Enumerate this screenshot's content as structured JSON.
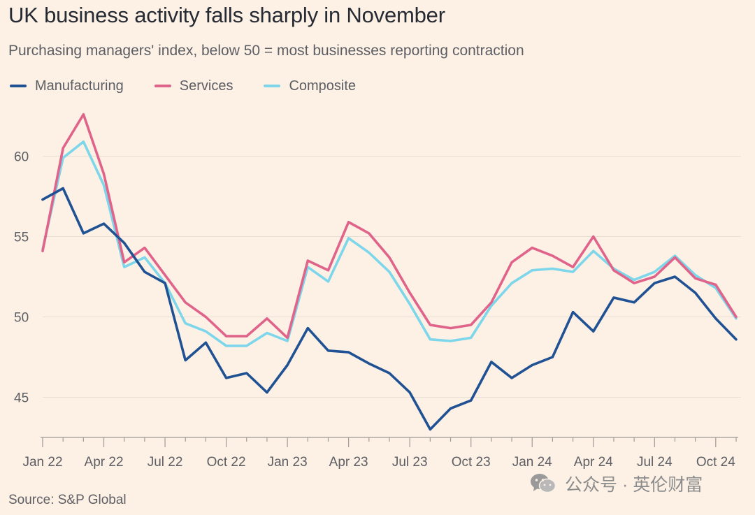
{
  "title": "UK business activity falls sharply in November",
  "subtitle": "Purchasing managers' index, below 50 = most businesses reporting contraction",
  "source": "Source: S&P Global",
  "watermark": "公众号 · 英伦财富",
  "colors": {
    "background": "#FDF1E6",
    "grid": "#E9DED4",
    "axis": "#A09A95",
    "tick_text": "#5d5e63"
  },
  "chart_data": {
    "type": "line",
    "title": "UK business activity falls sharply in November",
    "xlabel": "",
    "ylabel": "",
    "ylim": [
      42.5,
      63.5
    ],
    "yticks": [
      45,
      50,
      55,
      60
    ],
    "grid": "horizontal",
    "legend_position": "top-left",
    "x": [
      "Jan 22",
      "Feb 22",
      "Mar 22",
      "Apr 22",
      "May 22",
      "Jun 22",
      "Jul 22",
      "Aug 22",
      "Sep 22",
      "Oct 22",
      "Nov 22",
      "Dec 22",
      "Jan 23",
      "Feb 23",
      "Mar 23",
      "Apr 23",
      "May 23",
      "Jun 23",
      "Jul 23",
      "Aug 23",
      "Sep 23",
      "Oct 23",
      "Nov 23",
      "Dec 23",
      "Jan 24",
      "Feb 24",
      "Mar 24",
      "Apr 24",
      "May 24",
      "Jun 24",
      "Jul 24",
      "Aug 24",
      "Sep 24",
      "Oct 24",
      "Nov 24"
    ],
    "xticks": [
      "Jan 22",
      "Apr 22",
      "Jul 22",
      "Oct 22",
      "Jan 23",
      "Apr 23",
      "Jul 23",
      "Oct 23",
      "Jan 24",
      "Apr 24",
      "Jul 24",
      "Oct 24"
    ],
    "series": [
      {
        "name": "Manufacturing",
        "color": "#1F5193",
        "values": [
          57.3,
          58.0,
          55.2,
          55.8,
          54.6,
          52.8,
          52.1,
          47.3,
          48.4,
          46.2,
          46.5,
          45.3,
          47.0,
          49.3,
          47.9,
          47.8,
          47.1,
          46.5,
          45.3,
          43.0,
          44.3,
          44.8,
          47.2,
          46.2,
          47.0,
          47.5,
          50.3,
          49.1,
          51.2,
          50.9,
          52.1,
          52.5,
          51.5,
          49.9,
          48.6
        ]
      },
      {
        "name": "Services",
        "color": "#E0638A",
        "values": [
          54.1,
          60.5,
          62.6,
          58.9,
          53.4,
          54.3,
          52.6,
          50.9,
          50.0,
          48.8,
          48.8,
          49.9,
          48.7,
          53.5,
          52.9,
          55.9,
          55.2,
          53.7,
          51.5,
          49.5,
          49.3,
          49.5,
          50.9,
          53.4,
          54.3,
          53.8,
          53.1,
          55.0,
          52.9,
          52.1,
          52.5,
          53.7,
          52.4,
          52.0,
          50.0
        ]
      },
      {
        "name": "Composite",
        "color": "#7DD6EA",
        "values": [
          54.2,
          59.9,
          60.9,
          58.2,
          53.1,
          53.7,
          52.1,
          49.6,
          49.1,
          48.2,
          48.2,
          49.0,
          48.5,
          53.1,
          52.2,
          54.9,
          54.0,
          52.8,
          50.8,
          48.6,
          48.5,
          48.7,
          50.7,
          52.1,
          52.9,
          53.0,
          52.8,
          54.1,
          53.0,
          52.3,
          52.8,
          53.8,
          52.6,
          51.8,
          49.9
        ]
      }
    ]
  }
}
